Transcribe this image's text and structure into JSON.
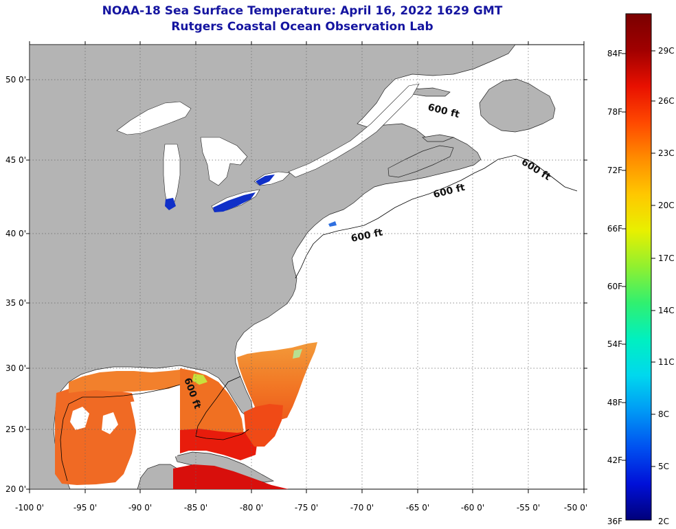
{
  "header": {
    "title": "NOAA-18 Sea Surface Temperature:  April 16, 2022 1629 GMT",
    "subtitle": "Rutgers Coastal Ocean Observation Lab"
  },
  "map": {
    "lon_labels": [
      "-100 0'",
      "-95 0'",
      "-90 0'",
      "-85 0'",
      "-80 0'",
      "-75 0'",
      "-70 0'",
      "-65 0'",
      "-60 0'",
      "-55 0'",
      "-50 0'"
    ],
    "lat_labels": [
      "20 0'",
      "25 0'",
      "30 0'",
      "35 0'",
      "40 0'",
      "45 0'",
      "50 0'"
    ],
    "contour_labels": [
      "600 ft",
      "600 ft",
      "600 ft",
      "600 ft",
      "600 ft"
    ],
    "colors": {
      "land": "#b4b4b4",
      "no_data": "#ffffff",
      "grid": "#666666"
    }
  },
  "colorbar": {
    "fahrenheit": [
      "84F",
      "78F",
      "72F",
      "66F",
      "60F",
      "54F",
      "48F",
      "42F",
      "36F"
    ],
    "celsius": [
      "29C",
      "26C",
      "23C",
      "20C",
      "17C",
      "14C",
      "11C",
      "8C",
      "5C",
      "2C"
    ],
    "colors": [
      "#00007a",
      "#0010d8",
      "#0050f0",
      "#0098f5",
      "#00d8ee",
      "#00f0c0",
      "#30f070",
      "#90f030",
      "#e8f000",
      "#ffc800",
      "#ff8c00",
      "#ff4800",
      "#e81000",
      "#a00000",
      "#7a0000"
    ]
  }
}
